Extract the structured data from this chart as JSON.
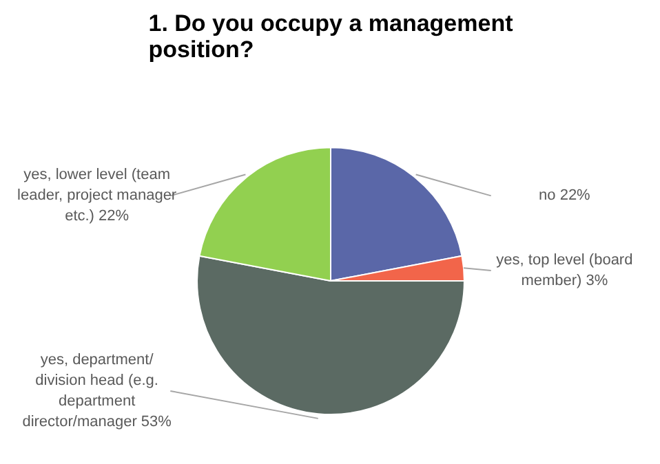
{
  "chart_data": {
    "type": "pie",
    "title": "1. Do you occupy a management position?",
    "categories": [
      "no",
      "yes, top level (board member)",
      "yes, department/ division head (e.g. department director/manager",
      "yes, lower level (team leader, project manager etc.)"
    ],
    "values": [
      22,
      3,
      53,
      22
    ],
    "value_labels": [
      "22%",
      "3%",
      "53%",
      "22%"
    ],
    "colors": [
      "#5a67a8",
      "#f2654a",
      "#5b6a63",
      "#92d050"
    ]
  }
}
